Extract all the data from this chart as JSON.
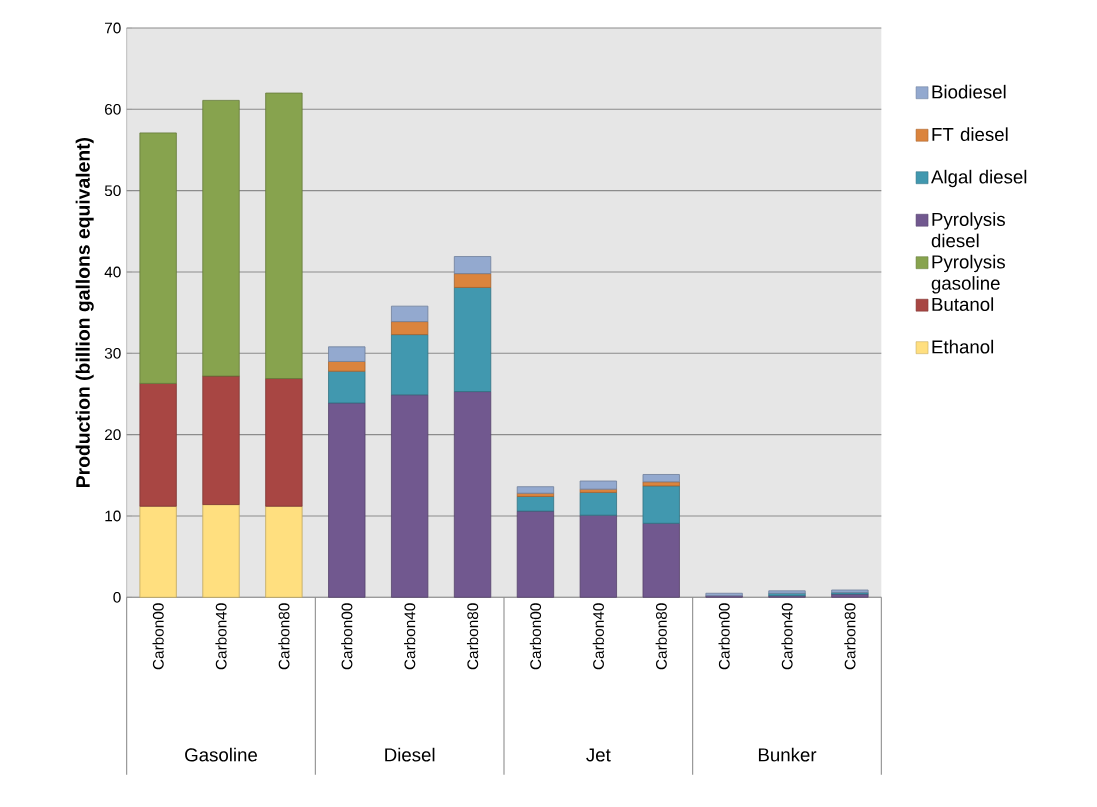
{
  "chart_data": {
    "type": "bar",
    "stacked": true,
    "ylabel": "Production (billion gallons equivalent)",
    "categories": [
      "Carbon00",
      "Carbon40",
      "Carbon80",
      "Carbon00",
      "Carbon40",
      "Carbon80",
      "Carbon00",
      "Carbon40",
      "Carbon80",
      "Carbon00",
      "Carbon40",
      "Carbon80"
    ],
    "annotations": [
      "Gasoline",
      "Diesel",
      "Jet",
      "Bunker"
    ],
    "series": [
      {
        "name": "Ethanol",
        "color": "#ffdf7f",
        "values": [
          11.2,
          11.4,
          11.2,
          null,
          null,
          null,
          null,
          null,
          null,
          null,
          null,
          null
        ]
      },
      {
        "name": "Butanol",
        "color": "#a84643",
        "values": [
          15.1,
          15.8,
          15.7,
          null,
          null,
          null,
          null,
          null,
          null,
          null,
          null,
          null
        ]
      },
      {
        "name": "Pyrolysis gasoline",
        "color": "#87a34e",
        "values": [
          30.8,
          33.9,
          35.1,
          null,
          null,
          null,
          null,
          null,
          null,
          null,
          null,
          null
        ]
      },
      {
        "name": "Pyrolysis diesel",
        "color": "#71588f",
        "values": [
          null,
          null,
          null,
          23.9,
          24.9,
          25.3,
          10.6,
          10.1,
          9.1,
          0.2,
          0.2,
          0.4
        ]
      },
      {
        "name": "Algal diesel",
        "color": "#4198af",
        "values": [
          null,
          null,
          null,
          3.9,
          7.4,
          12.8,
          1.8,
          2.8,
          4.6,
          null,
          0.3,
          0.2
        ]
      },
      {
        "name": "FT diesel",
        "color": "#db843d",
        "values": [
          null,
          null,
          null,
          1.2,
          1.6,
          1.7,
          0.4,
          0.4,
          0.5,
          null,
          null,
          null
        ]
      },
      {
        "name": "Biodiesel",
        "color": "#93a9cf",
        "values": [
          null,
          null,
          null,
          1.8,
          1.9,
          2.1,
          0.8,
          1.0,
          0.9,
          0.3,
          0.3,
          0.3
        ]
      }
    ],
    "ylim": [
      0,
      70
    ],
    "yticks": [
      0,
      10,
      20,
      30,
      40,
      50,
      60,
      70
    ],
    "grid": "y",
    "legend": "right"
  }
}
